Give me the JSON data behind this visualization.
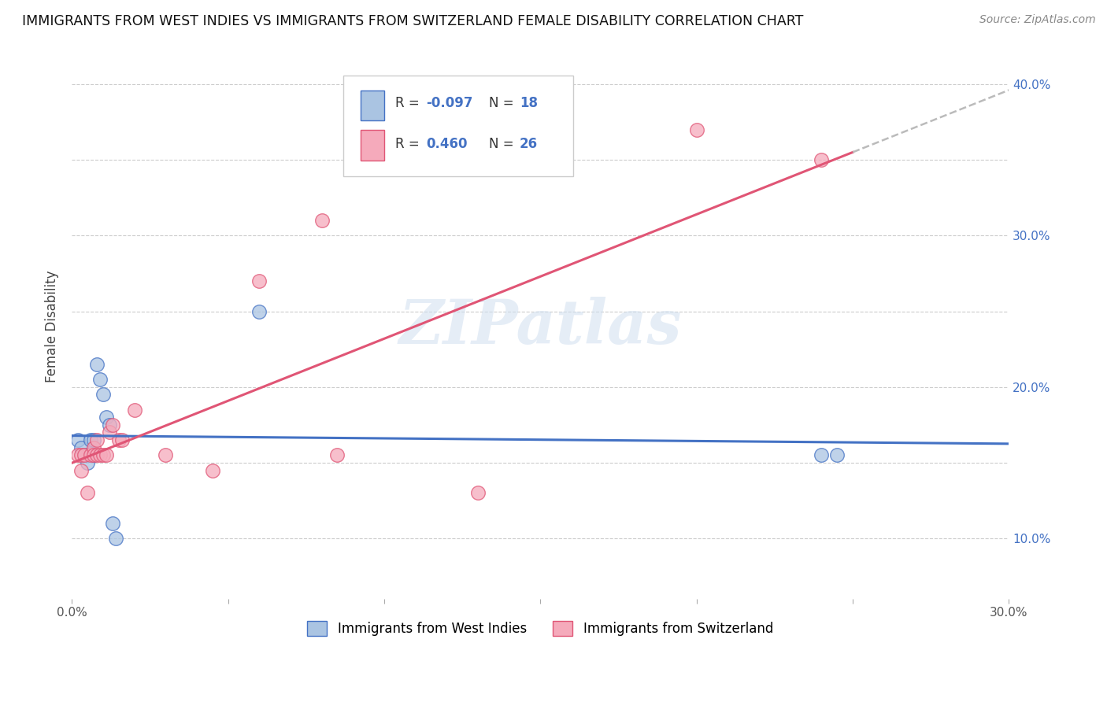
{
  "title": "IMMIGRANTS FROM WEST INDIES VS IMMIGRANTS FROM SWITZERLAND FEMALE DISABILITY CORRELATION CHART",
  "source": "Source: ZipAtlas.com",
  "ylabel": "Female Disability",
  "xlim": [
    0.0,
    0.3
  ],
  "ylim": [
    0.06,
    0.42
  ],
  "color_blue": "#aac4e2",
  "color_pink": "#f5aabb",
  "line_blue": "#4472c4",
  "line_pink": "#e05575",
  "line_dash": "#bbbbbb",
  "watermark": "ZIPatlas",
  "west_indies_x": [
    0.002,
    0.003,
    0.004,
    0.005,
    0.005,
    0.006,
    0.007,
    0.007,
    0.008,
    0.009,
    0.01,
    0.011,
    0.012,
    0.013,
    0.014,
    0.06,
    0.24,
    0.245
  ],
  "west_indies_y": [
    0.165,
    0.16,
    0.155,
    0.155,
    0.15,
    0.165,
    0.165,
    0.155,
    0.215,
    0.205,
    0.195,
    0.18,
    0.175,
    0.11,
    0.1,
    0.25,
    0.155,
    0.155
  ],
  "switzerland_x": [
    0.002,
    0.003,
    0.003,
    0.004,
    0.005,
    0.006,
    0.007,
    0.007,
    0.008,
    0.008,
    0.009,
    0.01,
    0.011,
    0.012,
    0.013,
    0.015,
    0.016,
    0.02,
    0.03,
    0.045,
    0.06,
    0.08,
    0.085,
    0.13,
    0.2,
    0.24
  ],
  "switzerland_y": [
    0.155,
    0.155,
    0.145,
    0.155,
    0.13,
    0.155,
    0.16,
    0.155,
    0.155,
    0.165,
    0.155,
    0.155,
    0.155,
    0.17,
    0.175,
    0.165,
    0.165,
    0.185,
    0.155,
    0.145,
    0.27,
    0.31,
    0.155,
    0.13,
    0.37,
    0.35
  ],
  "ytick_positions": [
    0.1,
    0.15,
    0.2,
    0.25,
    0.3,
    0.35,
    0.4
  ],
  "ytick_labels": [
    "10.0%",
    "",
    "20.0%",
    "",
    "30.0%",
    "",
    "40.0%"
  ],
  "xtick_positions": [
    0.0,
    0.05,
    0.1,
    0.15,
    0.2,
    0.25,
    0.3
  ],
  "xtick_labels": [
    "0.0%",
    "",
    "",
    "",
    "",
    "",
    "30.0%"
  ]
}
